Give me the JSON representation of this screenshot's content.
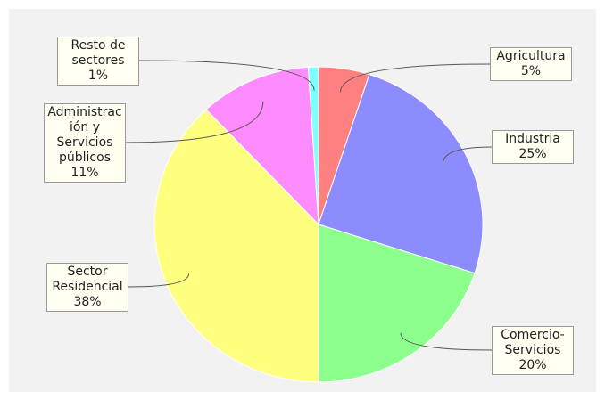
{
  "chart_data": {
    "type": "pie",
    "categories": [
      "Agricultura",
      "Industria",
      "Comercio-Servicios",
      "Sector Residencial",
      "Administración y Servicios públicos",
      "Resto de sectores"
    ],
    "values": [
      5,
      25,
      20,
      38,
      11,
      1
    ],
    "value_labels": [
      "5%",
      "25%",
      "20%",
      "38%",
      "11%",
      "1%"
    ],
    "colors": [
      "#ff8080",
      "#8c8cff",
      "#8cff8c",
      "#ffff80",
      "#ff8cff",
      "#80ffff"
    ]
  }
}
